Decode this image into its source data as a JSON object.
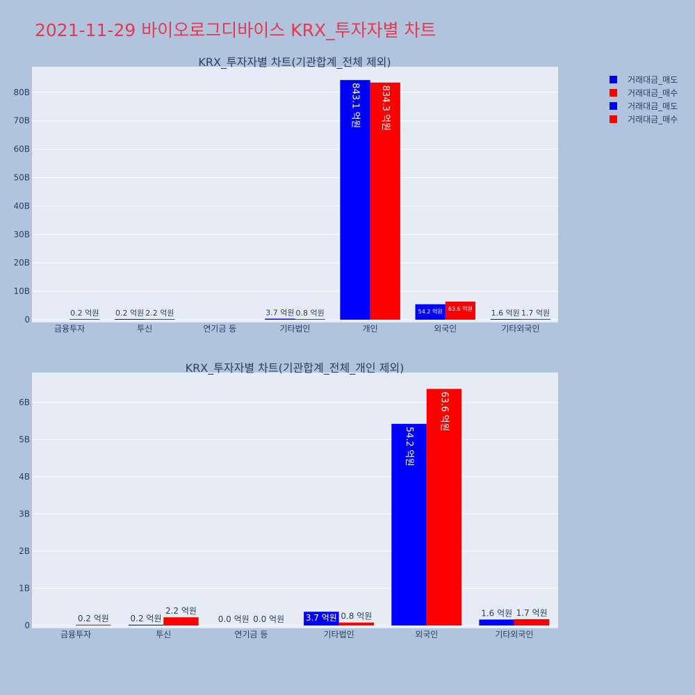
{
  "page_title": "2021-11-29 바이오로그디바이스 KRX_투자자별 차트",
  "legend": [
    {
      "label": "거래대금_매도",
      "color": "#0000ff"
    },
    {
      "label": "거래대금_매수",
      "color": "#ff0000"
    },
    {
      "label": "거래대금_매도",
      "color": "#0000ff"
    },
    {
      "label": "거래대금_매수",
      "color": "#ff0000"
    }
  ],
  "chart_data": [
    {
      "type": "bar",
      "title": "KRX_투자자별 차트(기관합계_전체 제외)",
      "categories": [
        "금융투자",
        "투신",
        "연기금 등",
        "기타법인",
        "개인",
        "외국인",
        "기타외국인"
      ],
      "series": [
        {
          "name": "거래대금_매도",
          "color": "#0000ff",
          "values": [
            0.0,
            0.02,
            0.0,
            0.37,
            84.31,
            5.42,
            0.16
          ],
          "labels": [
            "",
            "0.2 억원",
            "",
            "3.7 억원",
            "843.1 억원",
            "54.2 억원",
            "1.6 억원"
          ]
        },
        {
          "name": "거래대금_매수",
          "color": "#ff0000",
          "values": [
            0.02,
            0.22,
            0.0,
            0.08,
            83.43,
            6.36,
            0.17
          ],
          "labels": [
            "0.2 억원",
            "2.2 억원",
            "",
            "0.8 억원",
            "834.3 억원",
            "63.6 억원",
            "1.7 억원"
          ]
        }
      ],
      "yticks": [
        "0",
        "10B",
        "20B",
        "30B",
        "40B",
        "50B",
        "60B",
        "70B",
        "80B"
      ],
      "ylim": [
        0,
        89
      ],
      "grid": true
    },
    {
      "type": "bar",
      "title": "KRX_투자자별 차트(기관합계_전체_개인 제외)",
      "categories": [
        "금융투자",
        "투신",
        "연기금 등",
        "기타법인",
        "외국인",
        "기타외국인"
      ],
      "series": [
        {
          "name": "거래대금_매도",
          "color": "#0000ff",
          "values": [
            0.0,
            0.02,
            0.0,
            0.37,
            5.42,
            0.16
          ],
          "labels": [
            "",
            "0.2 억원",
            "0.0 억원",
            "3.7 억원",
            "54.2 억원",
            "1.6 억원"
          ]
        },
        {
          "name": "거래대금_매수",
          "color": "#ff0000",
          "values": [
            0.02,
            0.22,
            0.0,
            0.08,
            6.36,
            0.17
          ],
          "labels": [
            "0.2 억원",
            "2.2 억원",
            "0.0 억원",
            "0.8 억원",
            "63.6 억원",
            "1.7 억원"
          ]
        }
      ],
      "yticks": [
        "0",
        "1B",
        "2B",
        "3B",
        "4B",
        "5B",
        "6B"
      ],
      "ylim": [
        0,
        6.8
      ],
      "grid": true
    }
  ]
}
